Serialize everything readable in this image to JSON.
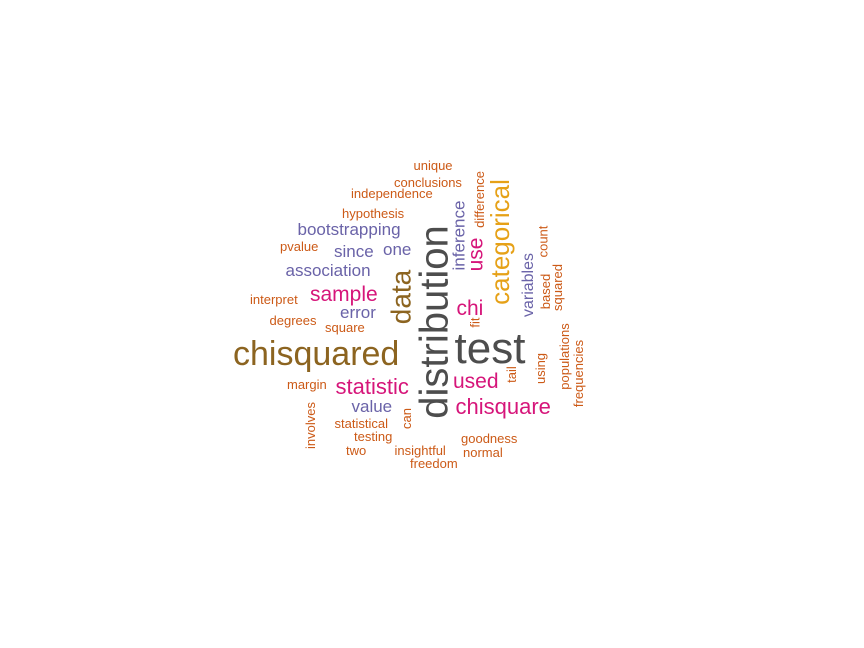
{
  "colors": {
    "dark_gray": "#4d4d4d",
    "brown": "#8c6420",
    "gold": "#e6a117",
    "magenta": "#d6157a",
    "purple": "#6a63a8",
    "orange": "#cc5a17"
  },
  "words": [
    {
      "text": "test",
      "color": "#4d4d4d",
      "vertical": false
    },
    {
      "text": "distribution",
      "color": "#4d4d4d",
      "vertical": true
    },
    {
      "text": "chisquared",
      "color": "#8c6420",
      "vertical": false
    },
    {
      "text": "data",
      "color": "#8c6420",
      "vertical": true
    },
    {
      "text": "categorical",
      "color": "#e6a117",
      "vertical": true
    },
    {
      "text": "chisquare",
      "color": "#d6157a",
      "vertical": false
    },
    {
      "text": "statistic",
      "color": "#d6157a",
      "vertical": false
    },
    {
      "text": "sample",
      "color": "#d6157a",
      "vertical": false
    },
    {
      "text": "used",
      "color": "#d6157a",
      "vertical": false
    },
    {
      "text": "chi",
      "color": "#d6157a",
      "vertical": false
    },
    {
      "text": "use",
      "color": "#d6157a",
      "vertical": true
    },
    {
      "text": "bootstrapping",
      "color": "#6a63a8",
      "vertical": false
    },
    {
      "text": "association",
      "color": "#6a63a8",
      "vertical": false
    },
    {
      "text": "since",
      "color": "#6a63a8",
      "vertical": false
    },
    {
      "text": "one",
      "color": "#6a63a8",
      "vertical": false
    },
    {
      "text": "error",
      "color": "#6a63a8",
      "vertical": false
    },
    {
      "text": "value",
      "color": "#6a63a8",
      "vertical": false
    },
    {
      "text": "inference",
      "color": "#6a63a8",
      "vertical": true
    },
    {
      "text": "variables",
      "color": "#6a63a8",
      "vertical": true
    },
    {
      "text": "unique",
      "color": "#cc5a17",
      "vertical": false
    },
    {
      "text": "conclusions",
      "color": "#cc5a17",
      "vertical": false
    },
    {
      "text": "independence",
      "color": "#cc5a17",
      "vertical": false
    },
    {
      "text": "hypothesis",
      "color": "#cc5a17",
      "vertical": false
    },
    {
      "text": "pvalue",
      "color": "#cc5a17",
      "vertical": false
    },
    {
      "text": "interpret",
      "color": "#cc5a17",
      "vertical": false
    },
    {
      "text": "degrees",
      "color": "#cc5a17",
      "vertical": false
    },
    {
      "text": "square",
      "color": "#cc5a17",
      "vertical": false
    },
    {
      "text": "margin",
      "color": "#cc5a17",
      "vertical": false
    },
    {
      "text": "statistical",
      "color": "#cc5a17",
      "vertical": false
    },
    {
      "text": "testing",
      "color": "#cc5a17",
      "vertical": false
    },
    {
      "text": "two",
      "color": "#cc5a17",
      "vertical": false
    },
    {
      "text": "insightful",
      "color": "#cc5a17",
      "vertical": false
    },
    {
      "text": "freedom",
      "color": "#cc5a17",
      "vertical": false
    },
    {
      "text": "goodness",
      "color": "#cc5a17",
      "vertical": false
    },
    {
      "text": "normal",
      "color": "#cc5a17",
      "vertical": false
    },
    {
      "text": "difference",
      "color": "#cc5a17",
      "vertical": true
    },
    {
      "text": "count",
      "color": "#cc5a17",
      "vertical": true
    },
    {
      "text": "based",
      "color": "#cc5a17",
      "vertical": true
    },
    {
      "text": "squared",
      "color": "#cc5a17",
      "vertical": true
    },
    {
      "text": "fit",
      "color": "#cc5a17",
      "vertical": true
    },
    {
      "text": "tail",
      "color": "#cc5a17",
      "vertical": true
    },
    {
      "text": "using",
      "color": "#cc5a17",
      "vertical": true
    },
    {
      "text": "populations",
      "color": "#cc5a17",
      "vertical": true
    },
    {
      "text": "frequencies",
      "color": "#cc5a17",
      "vertical": true
    },
    {
      "text": "involves",
      "color": "#cc5a17",
      "vertical": true
    },
    {
      "text": "can",
      "color": "#cc5a17",
      "vertical": true
    }
  ]
}
